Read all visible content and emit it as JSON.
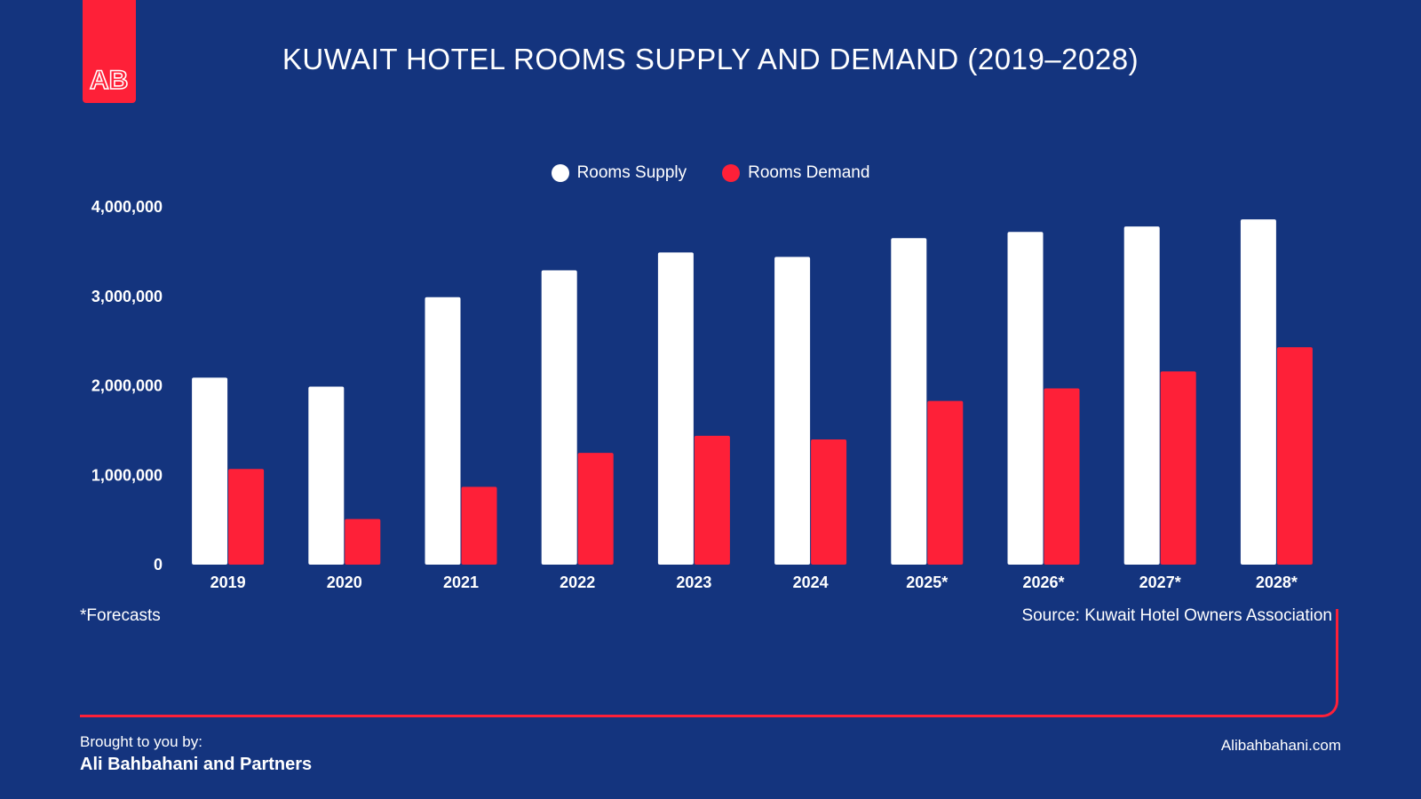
{
  "logo": {
    "text": "AB"
  },
  "title": "KUWAIT HOTEL ROOMS SUPPLY AND DEMAND (2019–2028)",
  "legend": {
    "supply_label": "Rooms Supply",
    "demand_label": "Rooms Demand"
  },
  "colors": {
    "background": "#14347e",
    "supply": "#ffffff",
    "demand": "#fe2038",
    "accent": "#fe2038"
  },
  "chart_data": {
    "type": "bar",
    "title": "KUWAIT HOTEL ROOMS SUPPLY AND DEMAND (2019–2028)",
    "xlabel": "",
    "ylabel": "",
    "categories": [
      "2019",
      "2020",
      "2021",
      "2022",
      "2023",
      "2024",
      "2025*",
      "2026*",
      "2027*",
      "2028*"
    ],
    "series": [
      {
        "name": "Rooms Supply",
        "values": [
          2090000,
          1990000,
          2990000,
          3290000,
          3490000,
          3440000,
          3650000,
          3720000,
          3780000,
          3860000
        ]
      },
      {
        "name": "Rooms Demand",
        "values": [
          1070000,
          510000,
          870000,
          1250000,
          1440000,
          1400000,
          1830000,
          1970000,
          2160000,
          2430000
        ]
      }
    ],
    "ylim": [
      0,
      4000000
    ],
    "yticks": [
      0,
      1000000,
      2000000,
      3000000,
      4000000
    ],
    "ytick_labels": [
      "0",
      "1,000,000",
      "2,000,000",
      "3,000,000",
      "4,000,000"
    ],
    "grid": false,
    "legend_position": "top-center"
  },
  "footnote": "*Forecasts",
  "source": "Source: Kuwait Hotel Owners Association",
  "footer": {
    "brought_by": "Brought to you by:",
    "company": "Ali Bahbahani and Partners",
    "website": "Alibahbahani.com"
  }
}
